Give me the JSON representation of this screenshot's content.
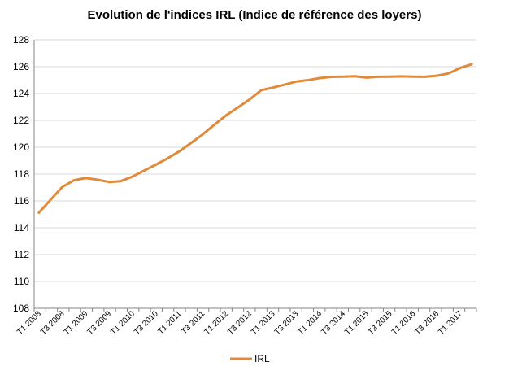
{
  "chart_data": {
    "type": "line",
    "title": "Evolution de l'indices IRL (Indice de référence des loyers)",
    "xlabel": "",
    "ylabel": "",
    "ylim": [
      108,
      128
    ],
    "yticks": [
      108,
      110,
      112,
      114,
      116,
      118,
      120,
      122,
      124,
      126,
      128
    ],
    "grid": true,
    "legend": "bottom",
    "categories": [
      "T1 2008",
      "T2 2008",
      "T3 2008",
      "T4 2008",
      "T1 2009",
      "T2 2009",
      "T3 2009",
      "T4 2009",
      "T1 2010",
      "T2 2010",
      "T3 2010",
      "T4 2010",
      "T1 2011",
      "T2 2011",
      "T3 2011",
      "T4 2011",
      "T1 2012",
      "T2 2012",
      "T3 2012",
      "T4 2012",
      "T1 2013",
      "T2 2013",
      "T3 2013",
      "T4 2013",
      "T1 2014",
      "T2 2014",
      "T3 2014",
      "T4 2014",
      "T1 2015",
      "T2 2015",
      "T3 2015",
      "T4 2015",
      "T1 2016",
      "T2 2016",
      "T3 2016",
      "T4 2016",
      "T1 2017",
      "T2 2017"
    ],
    "tick_labels": [
      "T1 2008",
      "T3 2008",
      "T1 2009",
      "T3 2009",
      "T1 2010",
      "T3 2010",
      "T1 2011",
      "T3 2011",
      "T1 2012",
      "T3 2012",
      "T1 2013",
      "T3 2013",
      "T1 2014",
      "T3 2014",
      "T1 2015",
      "T3 2015",
      "T1 2016",
      "T3 2016",
      "T1 2017"
    ],
    "series": [
      {
        "name": "IRL",
        "color": "#E08A3C",
        "values": [
          115.12,
          116.07,
          117.03,
          117.54,
          117.7,
          117.59,
          117.41,
          117.47,
          117.81,
          118.26,
          118.7,
          119.17,
          119.69,
          120.31,
          120.95,
          121.68,
          122.37,
          122.96,
          123.55,
          124.25,
          124.44,
          124.66,
          124.89,
          125.0,
          125.15,
          125.24,
          125.26,
          125.29,
          125.19,
          125.25,
          125.26,
          125.28,
          125.26,
          125.25,
          125.33,
          125.5,
          125.9,
          126.19
        ]
      }
    ]
  }
}
